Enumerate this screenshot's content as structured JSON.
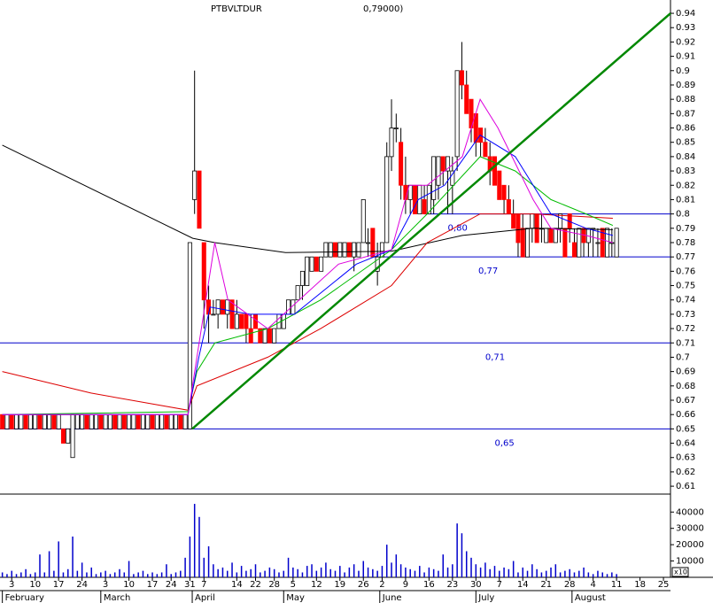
{
  "chart_data": {
    "type": "candlestick",
    "title": "PTBVLTDUR",
    "subtitle": "0,79000)",
    "up_color": "#ffffff",
    "down_color": "#ff0000",
    "edge_color": "#000000",
    "volume_color": "#0000cc",
    "xlim": [
      -0.5,
      142.5
    ],
    "xticks": [
      {
        "value": 2,
        "label": "3"
      },
      {
        "value": 7,
        "label": "10"
      },
      {
        "value": 12,
        "label": "17"
      },
      {
        "value": 17,
        "label": "24"
      },
      {
        "value": 22,
        "label": "3"
      },
      {
        "value": 27,
        "label": "10"
      },
      {
        "value": 32,
        "label": "17"
      },
      {
        "value": 36,
        "label": "24"
      },
      {
        "value": 40,
        "label": "31"
      },
      {
        "value": 43,
        "label": "7"
      },
      {
        "value": 50,
        "label": "14"
      },
      {
        "value": 54,
        "label": "22"
      },
      {
        "value": 58,
        "label": "28"
      },
      {
        "value": 62,
        "label": "5"
      },
      {
        "value": 67,
        "label": "12"
      },
      {
        "value": 72,
        "label": "19"
      },
      {
        "value": 77,
        "label": "26"
      },
      {
        "value": 81,
        "label": "2"
      },
      {
        "value": 86,
        "label": "9"
      },
      {
        "value": 91,
        "label": "16"
      },
      {
        "value": 96,
        "label": "23"
      },
      {
        "value": 101,
        "label": "30"
      },
      {
        "value": 106,
        "label": "7"
      },
      {
        "value": 111,
        "label": "14"
      },
      {
        "value": 116,
        "label": "21"
      },
      {
        "value": 121,
        "label": "28"
      },
      {
        "value": 126,
        "label": "4"
      },
      {
        "value": 131,
        "label": "11"
      },
      {
        "value": 136,
        "label": "18"
      },
      {
        "value": 141,
        "label": "25"
      }
    ],
    "months": [
      {
        "value": 0,
        "label": "February"
      },
      {
        "value": 21,
        "label": "March"
      },
      {
        "value": 40.5,
        "label": "April"
      },
      {
        "value": 60,
        "label": "May"
      },
      {
        "value": 80.5,
        "label": "June"
      },
      {
        "value": 101,
        "label": "July"
      },
      {
        "value": 121.5,
        "label": "August"
      }
    ],
    "ylim": [
      0.6045,
      0.9493
    ],
    "yticks": [
      0.61,
      0.62,
      0.63,
      0.64,
      0.65,
      0.66,
      0.67,
      0.68,
      0.69,
      0.7,
      0.71,
      0.72,
      0.73,
      0.74,
      0.75,
      0.76,
      0.77,
      0.78,
      0.79,
      0.8,
      0.81,
      0.82,
      0.83,
      0.84,
      0.85,
      0.86,
      0.87,
      0.88,
      0.89,
      0.9,
      0.91,
      0.92,
      0.93,
      0.94
    ],
    "ohlc": [
      [
        0.66,
        0.66,
        0.65,
        0.65
      ],
      [
        0.65,
        0.66,
        0.65,
        0.66
      ],
      [
        0.66,
        0.66,
        0.65,
        0.65
      ],
      [
        0.65,
        0.66,
        0.65,
        0.66
      ],
      [
        0.65,
        0.66,
        0.65,
        0.66
      ],
      [
        0.66,
        0.66,
        0.65,
        0.65
      ],
      [
        0.65,
        0.66,
        0.65,
        0.66
      ],
      [
        0.65,
        0.66,
        0.65,
        0.66
      ],
      [
        0.66,
        0.66,
        0.65,
        0.65
      ],
      [
        0.65,
        0.66,
        0.65,
        0.66
      ],
      [
        0.65,
        0.66,
        0.65,
        0.66
      ],
      [
        0.66,
        0.66,
        0.65,
        0.65
      ],
      [
        0.65,
        0.66,
        0.65,
        0.66
      ],
      [
        0.65,
        0.65,
        0.64,
        0.64
      ],
      [
        0.64,
        0.65,
        0.64,
        0.65
      ],
      [
        0.63,
        0.66,
        0.63,
        0.66
      ],
      [
        0.65,
        0.66,
        0.65,
        0.66
      ],
      [
        0.65,
        0.66,
        0.65,
        0.66
      ],
      [
        0.66,
        0.66,
        0.65,
        0.65
      ],
      [
        0.65,
        0.66,
        0.65,
        0.66
      ],
      [
        0.65,
        0.66,
        0.65,
        0.66
      ],
      [
        0.66,
        0.66,
        0.65,
        0.65
      ],
      [
        0.65,
        0.66,
        0.65,
        0.66
      ],
      [
        0.65,
        0.66,
        0.65,
        0.66
      ],
      [
        0.66,
        0.66,
        0.65,
        0.65
      ],
      [
        0.65,
        0.66,
        0.65,
        0.66
      ],
      [
        0.66,
        0.66,
        0.65,
        0.65
      ],
      [
        0.65,
        0.66,
        0.65,
        0.66
      ],
      [
        0.65,
        0.66,
        0.65,
        0.66
      ],
      [
        0.66,
        0.66,
        0.65,
        0.65
      ],
      [
        0.65,
        0.66,
        0.65,
        0.66
      ],
      [
        0.65,
        0.66,
        0.65,
        0.66
      ],
      [
        0.66,
        0.66,
        0.65,
        0.65
      ],
      [
        0.65,
        0.66,
        0.65,
        0.66
      ],
      [
        0.65,
        0.66,
        0.65,
        0.66
      ],
      [
        0.66,
        0.66,
        0.65,
        0.65
      ],
      [
        0.65,
        0.66,
        0.65,
        0.66
      ],
      [
        0.65,
        0.66,
        0.65,
        0.66
      ],
      [
        0.66,
        0.66,
        0.65,
        0.65
      ],
      [
        0.65,
        0.66,
        0.65,
        0.66
      ],
      [
        0.65,
        0.78,
        0.65,
        0.78
      ],
      [
        0.81,
        0.9,
        0.8,
        0.83
      ],
      [
        0.83,
        0.83,
        0.79,
        0.79
      ],
      [
        0.78,
        0.78,
        0.72,
        0.74
      ],
      [
        0.74,
        0.75,
        0.71,
        0.73
      ],
      [
        0.73,
        0.74,
        0.73,
        0.73
      ],
      [
        0.73,
        0.74,
        0.72,
        0.74
      ],
      [
        0.74,
        0.74,
        0.73,
        0.73
      ],
      [
        0.73,
        0.74,
        0.72,
        0.74
      ],
      [
        0.74,
        0.74,
        0.72,
        0.72
      ],
      [
        0.72,
        0.74,
        0.72,
        0.73
      ],
      [
        0.73,
        0.73,
        0.72,
        0.72
      ],
      [
        0.73,
        0.73,
        0.71,
        0.72
      ],
      [
        0.72,
        0.73,
        0.71,
        0.71
      ],
      [
        0.73,
        0.73,
        0.72,
        0.72
      ],
      [
        0.72,
        0.72,
        0.71,
        0.71
      ],
      [
        0.71,
        0.72,
        0.71,
        0.72
      ],
      [
        0.72,
        0.72,
        0.71,
        0.71
      ],
      [
        0.71,
        0.72,
        0.71,
        0.72
      ],
      [
        0.72,
        0.73,
        0.72,
        0.73
      ],
      [
        0.72,
        0.73,
        0.72,
        0.73
      ],
      [
        0.73,
        0.74,
        0.73,
        0.74
      ],
      [
        0.73,
        0.74,
        0.73,
        0.74
      ],
      [
        0.74,
        0.75,
        0.74,
        0.75
      ],
      [
        0.75,
        0.76,
        0.74,
        0.76
      ],
      [
        0.75,
        0.77,
        0.75,
        0.77
      ],
      [
        0.76,
        0.77,
        0.76,
        0.77
      ],
      [
        0.77,
        0.77,
        0.76,
        0.76
      ],
      [
        0.76,
        0.77,
        0.76,
        0.77
      ],
      [
        0.77,
        0.78,
        0.77,
        0.78
      ],
      [
        0.77,
        0.78,
        0.77,
        0.78
      ],
      [
        0.78,
        0.78,
        0.77,
        0.77
      ],
      [
        0.77,
        0.78,
        0.77,
        0.78
      ],
      [
        0.77,
        0.78,
        0.77,
        0.78
      ],
      [
        0.78,
        0.78,
        0.77,
        0.77
      ],
      [
        0.77,
        0.78,
        0.76,
        0.78
      ],
      [
        0.77,
        0.78,
        0.77,
        0.78
      ],
      [
        0.78,
        0.81,
        0.78,
        0.81
      ],
      [
        0.78,
        0.79,
        0.77,
        0.78
      ],
      [
        0.79,
        0.79,
        0.77,
        0.77
      ],
      [
        0.76,
        0.78,
        0.75,
        0.77
      ],
      [
        0.77,
        0.78,
        0.77,
        0.78
      ],
      [
        0.78,
        0.85,
        0.78,
        0.84
      ],
      [
        0.84,
        0.88,
        0.83,
        0.86
      ],
      [
        0.86,
        0.87,
        0.85,
        0.86
      ],
      [
        0.85,
        0.86,
        0.81,
        0.82
      ],
      [
        0.82,
        0.84,
        0.8,
        0.81
      ],
      [
        0.81,
        0.82,
        0.8,
        0.82
      ],
      [
        0.82,
        0.82,
        0.8,
        0.8
      ],
      [
        0.8,
        0.82,
        0.8,
        0.82
      ],
      [
        0.81,
        0.82,
        0.8,
        0.8
      ],
      [
        0.8,
        0.82,
        0.8,
        0.82
      ],
      [
        0.81,
        0.84,
        0.8,
        0.84
      ],
      [
        0.82,
        0.84,
        0.81,
        0.84
      ],
      [
        0.84,
        0.84,
        0.82,
        0.83
      ],
      [
        0.83,
        0.84,
        0.8,
        0.84
      ],
      [
        0.82,
        0.84,
        0.8,
        0.83
      ],
      [
        0.84,
        0.9,
        0.83,
        0.9
      ],
      [
        0.9,
        0.92,
        0.88,
        0.89
      ],
      [
        0.89,
        0.9,
        0.87,
        0.87
      ],
      [
        0.88,
        0.88,
        0.85,
        0.86
      ],
      [
        0.87,
        0.87,
        0.84,
        0.85
      ],
      [
        0.86,
        0.86,
        0.84,
        0.85
      ],
      [
        0.85,
        0.86,
        0.84,
        0.84
      ],
      [
        0.84,
        0.85,
        0.82,
        0.83
      ],
      [
        0.84,
        0.84,
        0.82,
        0.82
      ],
      [
        0.83,
        0.83,
        0.81,
        0.81
      ],
      [
        0.82,
        0.82,
        0.8,
        0.81
      ],
      [
        0.81,
        0.82,
        0.8,
        0.8
      ],
      [
        0.8,
        0.81,
        0.79,
        0.79
      ],
      [
        0.8,
        0.8,
        0.77,
        0.78
      ],
      [
        0.79,
        0.8,
        0.77,
        0.77
      ],
      [
        0.77,
        0.79,
        0.77,
        0.79
      ],
      [
        0.79,
        0.8,
        0.78,
        0.8
      ],
      [
        0.8,
        0.8,
        0.78,
        0.78
      ],
      [
        0.79,
        0.8,
        0.78,
        0.79
      ],
      [
        0.78,
        0.79,
        0.78,
        0.79
      ],
      [
        0.79,
        0.79,
        0.78,
        0.78
      ],
      [
        0.78,
        0.79,
        0.78,
        0.79
      ],
      [
        0.79,
        0.8,
        0.78,
        0.8
      ],
      [
        0.79,
        0.79,
        0.77,
        0.77
      ],
      [
        0.8,
        0.8,
        0.78,
        0.79
      ],
      [
        0.78,
        0.79,
        0.77,
        0.77
      ],
      [
        0.77,
        0.79,
        0.77,
        0.79
      ],
      [
        0.79,
        0.79,
        0.77,
        0.78
      ],
      [
        0.78,
        0.79,
        0.77,
        0.79
      ],
      [
        0.79,
        0.79,
        0.77,
        0.79
      ],
      [
        0.78,
        0.79,
        0.77,
        0.78
      ],
      [
        0.79,
        0.79,
        0.77,
        0.77
      ],
      [
        0.77,
        0.79,
        0.77,
        0.79
      ],
      [
        0.78,
        0.79,
        0.77,
        0.78
      ],
      [
        0.77,
        0.79,
        0.77,
        0.79
      ]
    ],
    "volume": [
      3000,
      2000,
      4000,
      2000,
      3000,
      5000,
      2000,
      3000,
      14000,
      3000,
      16000,
      4000,
      22000,
      3000,
      5000,
      25000,
      4000,
      9000,
      3000,
      6000,
      2000,
      3000,
      4000,
      2000,
      3000,
      5000,
      3000,
      10000,
      2000,
      3000,
      4000,
      2000,
      3000,
      2000,
      3000,
      8000,
      2000,
      3000,
      4000,
      12000,
      25000,
      45000,
      37000,
      12000,
      19000,
      8000,
      5000,
      6000,
      4000,
      9000,
      3000,
      7000,
      4000,
      5000,
      8000,
      3000,
      4000,
      6000,
      5000,
      3000,
      4000,
      12000,
      6000,
      5000,
      3000,
      7000,
      8000,
      4000,
      6000,
      9000,
      5000,
      4000,
      7000,
      3000,
      6000,
      8000,
      4000,
      10000,
      6000,
      5000,
      4000,
      7000,
      20000,
      9000,
      14000,
      8000,
      6000,
      5000,
      4000,
      7000,
      3000,
      6000,
      5000,
      4000,
      14000,
      6000,
      8000,
      33000,
      27000,
      16000,
      12000,
      8000,
      6000,
      9000,
      5000,
      7000,
      4000,
      6000,
      5000,
      10000,
      3000,
      6000,
      4000,
      8000,
      5000,
      3000,
      4000,
      6000,
      8000,
      3000,
      4000,
      5000,
      3000,
      4000,
      6000,
      3000,
      2000,
      4000,
      3000,
      2000,
      3000,
      2000
    ],
    "volume_ylim": [
      0,
      51000
    ],
    "volume_yticks": [
      10000,
      20000,
      30000,
      40000
    ],
    "volume_unit": "x10",
    "lines": [
      {
        "color": "#000000",
        "x": [
          0,
          40.6,
          45.3,
          60.4,
          83,
          98.1,
          113.2,
          130.2
        ],
        "values": [
          0.848,
          0.783,
          0.78,
          0.773,
          0.774,
          0.785,
          0.79,
          0.789
        ]
      },
      {
        "color": "#dd0000",
        "x": [
          0,
          18.9,
          39.6,
          41.5,
          56.6,
          67.9,
          83,
          90.6,
          101.9,
          113.2,
          130.2
        ],
        "values": [
          0.69,
          0.675,
          0.663,
          0.68,
          0.7,
          0.72,
          0.75,
          0.78,
          0.8,
          0.8,
          0.797
        ]
      },
      {
        "color": "#00bb00",
        "x": [
          0,
          39.6,
          41.5,
          45.3,
          56.6,
          67.9,
          83,
          90.6,
          101.9,
          109.4,
          117,
          124.5,
          130.2
        ],
        "values": [
          0.66,
          0.662,
          0.69,
          0.71,
          0.72,
          0.74,
          0.775,
          0.8,
          0.84,
          0.83,
          0.81,
          0.8,
          0.792
        ]
      },
      {
        "color": "#0000ff",
        "x": [
          0,
          39.6,
          41.9,
          44.3,
          52.8,
          62.3,
          75.5,
          83,
          88.7,
          94.3,
          101.9,
          109.4,
          117,
          124.5,
          130.2
        ],
        "values": [
          0.66,
          0.66,
          0.7,
          0.735,
          0.73,
          0.73,
          0.765,
          0.775,
          0.81,
          0.82,
          0.855,
          0.84,
          0.8,
          0.79,
          0.785
        ]
      },
      {
        "color": "#dd00dd",
        "x": [
          0,
          39.6,
          41.5,
          45.3,
          48.1,
          56.6,
          71.7,
          83,
          86.8,
          90.6,
          98.1,
          101.9,
          105.7,
          113.2,
          117,
          124.5,
          130.2
        ],
        "values": [
          0.66,
          0.66,
          0.7,
          0.78,
          0.74,
          0.72,
          0.765,
          0.775,
          0.82,
          0.82,
          0.84,
          0.88,
          0.86,
          0.81,
          0.79,
          0.785,
          0.78
        ]
      }
    ],
    "trendline": {
      "color": "#008800",
      "x": [
        40.5,
        142.5
      ],
      "values": [
        0.65,
        0.94
      ]
    },
    "hlines": [
      {
        "value": 0.8,
        "label": "0,80",
        "from": 90,
        "at": 95
      },
      {
        "value": 0.77,
        "label": "0,77",
        "from": 79,
        "at": 101.5
      },
      {
        "value": 0.71,
        "label": "0,71",
        "from": -0.5,
        "at": 103
      },
      {
        "value": 0.65,
        "label": "0,65",
        "from": -0.5,
        "at": 105
      }
    ],
    "hline_color": "#0000cc"
  }
}
